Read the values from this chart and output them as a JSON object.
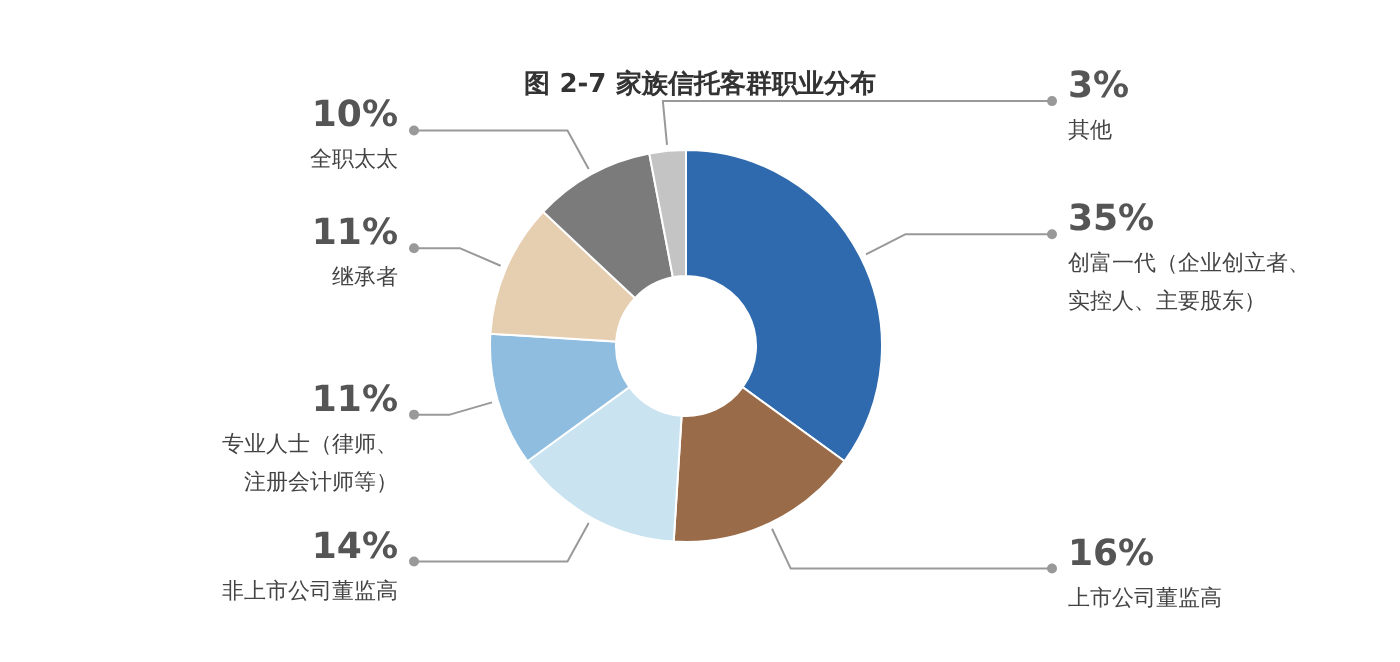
{
  "chart_data": {
    "type": "donut",
    "title": "图 2-7 家族信托客群职业分布",
    "categories": [
      "创富一代（企业创立者、实控人、主要股东）",
      "上市公司董监高",
      "非上市公司董监高",
      "专业人士（律师、注册会计师等）",
      "继承者",
      "全职太太",
      "其他"
    ],
    "values": [
      35,
      16,
      14,
      11,
      11,
      10,
      3
    ],
    "value_labels": [
      "35%",
      "16%",
      "14%",
      "11%",
      "11%",
      "10%",
      "3%"
    ],
    "colors": [
      "#2e6aad",
      "#9a6b48",
      "#c9e3f0",
      "#8fbde0",
      "#e6cfb0",
      "#7b7b7b",
      "#c4c4c4"
    ]
  }
}
